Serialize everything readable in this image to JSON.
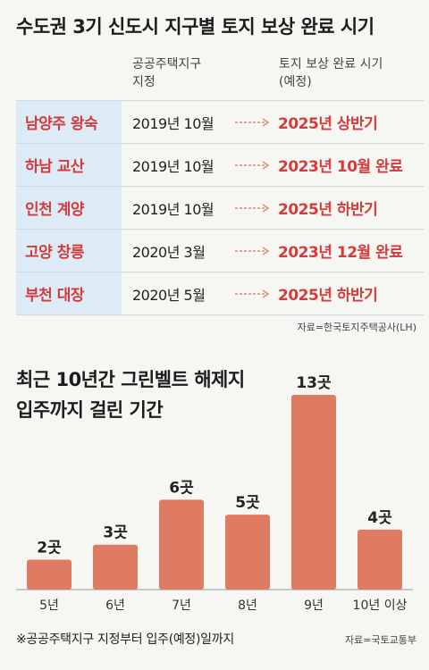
{
  "title": "수도권 3기 신도시 지구별 토지 보상 완료 시기",
  "table": {
    "col_designation": [
      "공공주택지구",
      "지정"
    ],
    "col_completion": [
      "토지 보상 완료 시기",
      "(예정)"
    ],
    "rows": [
      {
        "name": "남양주 왕숙",
        "designated": "2019년 10월",
        "completion": "2025년 상반기"
      },
      {
        "name": "하남 교산",
        "designated": "2019년 10월",
        "completion": "2023년 10월 완료"
      },
      {
        "name": "인천 계양",
        "designated": "2019년 10월",
        "completion": "2025년 하반기"
      },
      {
        "name": "고양 창릉",
        "designated": "2020년 3월",
        "completion": "2023년 12월 완료"
      },
      {
        "name": "부천 대장",
        "designated": "2020년 5월",
        "completion": "2025년 하반기"
      }
    ],
    "source": "자료=한국토지주택공사(LH)"
  },
  "chart_title": [
    "최근 10년간 그린벨트 해제지",
    "입주까지 걸린 기간"
  ],
  "chart_data": {
    "type": "bar",
    "title": "최근 10년간 그린벨트 해제지 입주까지 걸린 기간",
    "categories": [
      "5년",
      "6년",
      "7년",
      "8년",
      "9년",
      "10년 이상"
    ],
    "values": [
      2,
      3,
      6,
      5,
      13,
      4
    ],
    "data_labels": [
      "2곳",
      "3곳",
      "6곳",
      "5곳",
      "13곳",
      "4곳"
    ],
    "ylim": [
      0,
      13
    ],
    "grid": false,
    "bar_color": "#e07b63"
  },
  "note": "※공공주택지구 지정부터 입주(예정)일까지",
  "chart_source": "자료=국토교통부",
  "colors": {
    "accent_red": "#d43b3b",
    "name_cell_bg": "#dcebf5",
    "bar": "#e07b63"
  }
}
